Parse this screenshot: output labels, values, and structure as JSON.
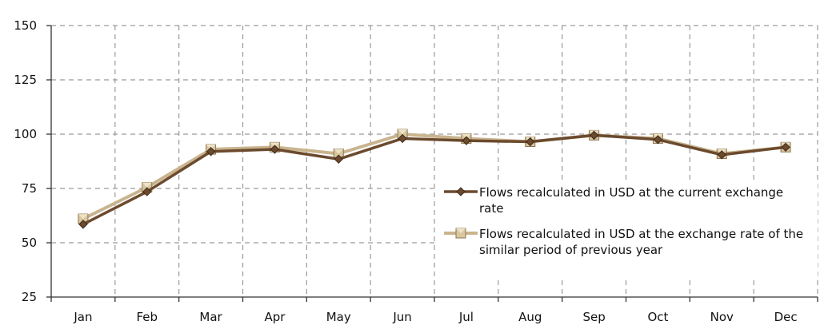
{
  "chart_data": {
    "type": "line",
    "categories": [
      "Jan",
      "Feb",
      "Mar",
      "Apr",
      "May",
      "Jun",
      "Jul",
      "Aug",
      "Sep",
      "Oct",
      "Nov",
      "Dec"
    ],
    "ylim": [
      25,
      150
    ],
    "yticks": [
      "25",
      "50",
      "75",
      "100",
      "125",
      "150"
    ],
    "grid": true,
    "legend_position": "right",
    "series": [
      {
        "name_lines": [
          "Flows recalculated in USD at the current exchange",
          "rate"
        ],
        "values": [
          58.5,
          73.5,
          92,
          93,
          88.5,
          98,
          97,
          96.5,
          99.5,
          97.5,
          90.5,
          94
        ],
        "color": "#6b4a2e",
        "marker": "diamond"
      },
      {
        "name_lines": [
          "Flows recalculated in USD at the exchange rate of the",
          "similar period of previous year"
        ],
        "values": [
          61,
          75.5,
          93,
          94,
          91,
          100,
          98,
          96.5,
          99.5,
          98,
          91,
          94
        ],
        "color": "#c9b48e",
        "marker": "square"
      }
    ]
  }
}
